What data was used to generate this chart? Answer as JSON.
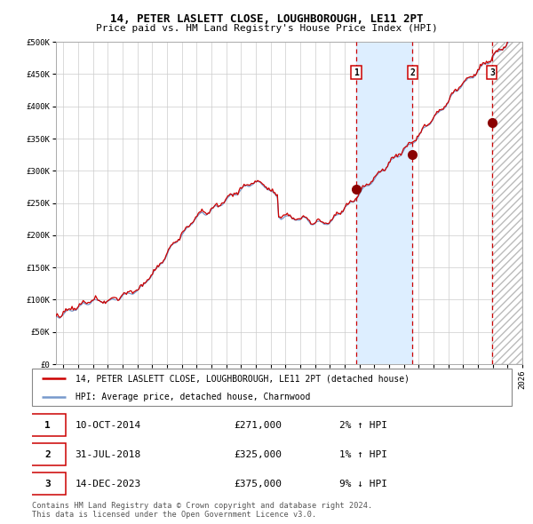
{
  "title": "14, PETER LASLETT CLOSE, LOUGHBOROUGH, LE11 2PT",
  "subtitle": "Price paid vs. HM Land Registry's House Price Index (HPI)",
  "legend_line1": "14, PETER LASLETT CLOSE, LOUGHBOROUGH, LE11 2PT (detached house)",
  "legend_line2": "HPI: Average price, detached house, Charnwood",
  "footnote1": "Contains HM Land Registry data © Crown copyright and database right 2024.",
  "footnote2": "This data is licensed under the Open Government Licence v3.0.",
  "transactions": [
    {
      "num": 1,
      "date": "10-OCT-2014",
      "price": 271000,
      "pct": "2%",
      "dir": "↑"
    },
    {
      "num": 2,
      "date": "31-JUL-2018",
      "price": 325000,
      "pct": "1%",
      "dir": "↑"
    },
    {
      "num": 3,
      "date": "14-DEC-2023",
      "price": 375000,
      "pct": "9%",
      "dir": "↓"
    }
  ],
  "transaction_dates_decimal": [
    2014.78,
    2018.58,
    2023.95
  ],
  "transaction_prices": [
    271000,
    325000,
    375000
  ],
  "shaded_region": [
    2014.78,
    2018.58
  ],
  "hatch_region_start": 2023.95,
  "hatch_region_end": 2026.0,
  "ylim": [
    0,
    500000
  ],
  "xlim_start": 1994.5,
  "xlim_end": 2026.0,
  "red_line_color": "#cc0000",
  "blue_line_color": "#7799cc",
  "dot_color": "#8b0000",
  "vline_color": "#cc0000",
  "shaded_color": "#ddeeff",
  "hatch_color": "#bbbbbb",
  "grid_color": "#cccccc",
  "background_color": "#ffffff"
}
